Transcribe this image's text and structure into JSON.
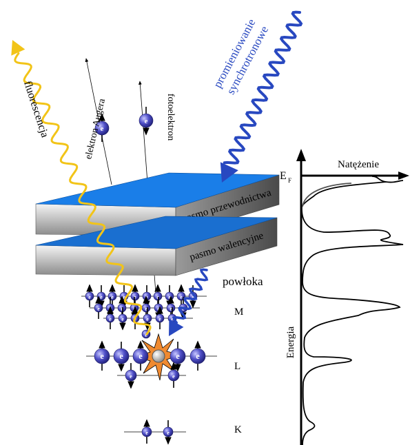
{
  "labels": {
    "synchrotron_line1": "promieniowanie",
    "synchrotron_line2": "synchrotronowe",
    "fluorescence": "fluorescencja",
    "auger": "elektron Augera",
    "photoelectron": "fotoelektron",
    "fermi_main": "E",
    "fermi_sub": "F",
    "intensity": "Natężenie",
    "energy": "Energia",
    "conduction_band": "pasmo przewodnictwa",
    "valence_band": "pasmo walencyjne",
    "shell": "powłoka",
    "shell_m": "M",
    "shell_l": "L",
    "shell_k": "K",
    "electron": "e"
  }
}
